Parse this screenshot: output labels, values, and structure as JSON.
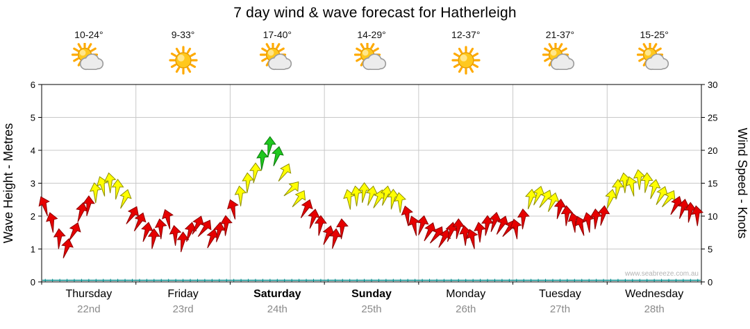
{
  "title": "7 day wind & wave forecast for Hatherleigh",
  "watermark": "www.seabreeze.com.au",
  "chart_data": {
    "type": "wind_wave_forecast_timeseries",
    "y_left": {
      "label": "Wave Height - Metres",
      "min": 0,
      "max": 6,
      "tick_step": 1
    },
    "y_right": {
      "label": "Wind Speed - Knots",
      "min": 0,
      "max": 30,
      "tick_step": 5
    },
    "grid": {
      "line_color": "#c8c8c8",
      "axis_color": "#000000"
    },
    "wave_height_m": 0.05,
    "wave_color": "#008B8B",
    "speed_bands": [
      {
        "name": "light",
        "max_knots": 12,
        "fill": "#E60000",
        "stroke": "#8F0000"
      },
      {
        "name": "moderate",
        "max_knots": 17,
        "fill": "#FFFF00",
        "stroke": "#909000"
      },
      {
        "name": "fresh",
        "max_knots": 31,
        "fill": "#1FC81F",
        "stroke": "#0A7A0A"
      }
    ],
    "days": [
      {
        "name": "Thursday",
        "date": "22nd",
        "temp": "10-24°",
        "icon": "sun-cloud",
        "weekend": false,
        "wind_knots": [
          11.5,
          9,
          6.5,
          5,
          7.5,
          10.5,
          11.5,
          13.5,
          14.5,
          15,
          14,
          12.5,
          10
        ],
        "wind_dir_deg": [
          -25,
          -15,
          -5,
          10,
          20,
          10,
          0,
          -10,
          -20,
          -10,
          0,
          15,
          25
        ]
      },
      {
        "name": "Friday",
        "date": "23rd",
        "temp": "9-33°",
        "icon": "sun",
        "weekend": false,
        "wind_knots": [
          9,
          7.5,
          6.5,
          8,
          9.5,
          7,
          6,
          7.5,
          8.5,
          8,
          6.5,
          7.5,
          8.5
        ],
        "wind_dir_deg": [
          20,
          10,
          0,
          -10,
          -20,
          -10,
          0,
          10,
          20,
          30,
          15,
          5,
          -5
        ]
      },
      {
        "name": "Saturday",
        "date": "24th",
        "temp": "17-40°",
        "icon": "sun-cloud",
        "weekend": true,
        "wind_knots": [
          11,
          13,
          15,
          16.5,
          18.5,
          20.5,
          19,
          16.5,
          14,
          12.5,
          11,
          9.5,
          8.5
        ],
        "wind_dir_deg": [
          -20,
          -10,
          -5,
          0,
          -5,
          0,
          10,
          25,
          40,
          30,
          20,
          10,
          0
        ]
      },
      {
        "name": "Sunday",
        "date": "25th",
        "temp": "14-29°",
        "icon": "sun-cloud",
        "weekend": true,
        "wind_knots": [
          7,
          6.5,
          8,
          12.5,
          13,
          13.5,
          13,
          12.5,
          13,
          12.5,
          12,
          10,
          8.5
        ],
        "wind_dir_deg": [
          15,
          5,
          -5,
          -15,
          -10,
          0,
          10,
          20,
          10,
          0,
          -10,
          -15,
          -20
        ]
      },
      {
        "name": "Monday",
        "date": "26th",
        "temp": "12-37°",
        "icon": "sun",
        "weekend": false,
        "wind_knots": [
          8.5,
          7.5,
          7,
          6.5,
          7.5,
          8,
          7,
          6.5,
          7.5,
          8.5,
          9,
          8.5,
          8
        ],
        "wind_dir_deg": [
          10,
          20,
          30,
          20,
          10,
          0,
          -10,
          -20,
          -10,
          0,
          10,
          20,
          30
        ]
      },
      {
        "name": "Tuesday",
        "date": "27th",
        "temp": "21-37°",
        "icon": "sun-cloud",
        "weekend": false,
        "wind_knots": [
          8,
          9.5,
          12.5,
          13,
          12.5,
          12,
          11,
          10,
          9,
          8.5,
          9,
          9.5,
          10
        ],
        "wind_dir_deg": [
          -15,
          -5,
          5,
          15,
          25,
          15,
          5,
          -5,
          -15,
          -25,
          -15,
          -5,
          5
        ]
      },
      {
        "name": "Wednesday",
        "date": "28th",
        "temp": "15-25°",
        "icon": "sun-cloud",
        "weekend": false,
        "wind_knots": [
          12.5,
          14,
          15,
          14.5,
          15.5,
          15,
          14,
          13,
          12.5,
          11.5,
          11,
          10.5,
          10
        ],
        "wind_dir_deg": [
          10,
          0,
          -10,
          -20,
          -10,
          0,
          10,
          20,
          30,
          20,
          10,
          0,
          -10
        ]
      }
    ]
  }
}
